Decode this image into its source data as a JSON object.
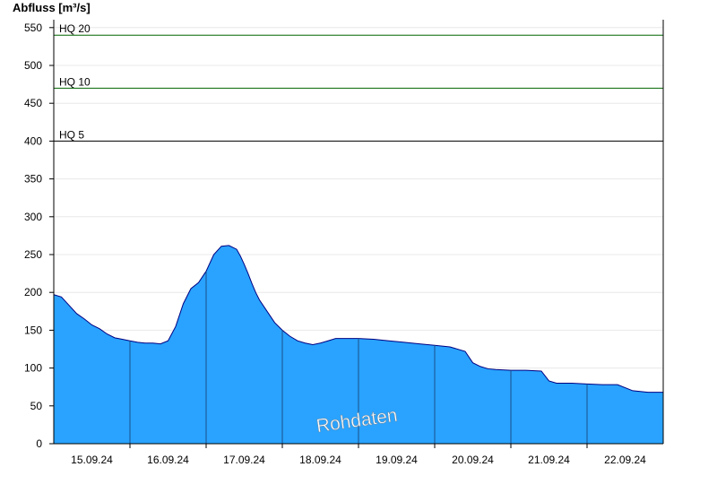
{
  "chart_data": {
    "type": "area",
    "ylabel": "Abfluss [m³/s]",
    "xlabel": "",
    "title": "",
    "ylim": [
      0,
      560
    ],
    "yticks": [
      0,
      50,
      100,
      150,
      200,
      250,
      300,
      350,
      400,
      450,
      500,
      550
    ],
    "x_range_days": [
      0,
      8
    ],
    "date_labels": [
      "15.09.24",
      "16.09.24",
      "17.09.24",
      "18.09.24",
      "19.09.24",
      "20.09.24",
      "21.09.24",
      "22.09.24"
    ],
    "grid": true,
    "fill_color": "#29a3ff",
    "line_color": "#000080",
    "watermark": "Rohdaten",
    "thresholds": [
      {
        "label": "HQ 20",
        "value": 540,
        "color": "#006400"
      },
      {
        "label": "HQ 10",
        "value": 470,
        "color": "#006400"
      },
      {
        "label": "HQ 5",
        "value": 400,
        "color": "#000000"
      }
    ],
    "series": [
      {
        "x": [
          0,
          0.1,
          0.2,
          0.3,
          0.4,
          0.5,
          0.6,
          0.7,
          0.8,
          0.9,
          1.0,
          1.1,
          1.2,
          1.3,
          1.4,
          1.5,
          1.6,
          1.7,
          1.8,
          1.9,
          2.0,
          2.1,
          2.2,
          2.3,
          2.4,
          2.45,
          2.5,
          2.55,
          2.6,
          2.65,
          2.7,
          2.8,
          2.9,
          3.0,
          3.1,
          3.2,
          3.3,
          3.4,
          3.5,
          3.6,
          3.7,
          3.8,
          3.9,
          4.0,
          4.2,
          4.4,
          4.6,
          4.8,
          5.0,
          5.2,
          5.4,
          5.5,
          5.6,
          5.7,
          5.8,
          6.0,
          6.2,
          6.4,
          6.5,
          6.6,
          6.8,
          7.0,
          7.2,
          7.4,
          7.6,
          7.8,
          8.0
        ],
        "values": [
          197,
          194,
          183,
          172,
          165,
          157,
          152,
          145,
          140,
          138,
          136,
          134,
          133,
          133,
          132,
          136,
          155,
          185,
          205,
          213,
          228,
          250,
          261,
          262,
          257,
          248,
          237,
          225,
          212,
          200,
          190,
          175,
          160,
          150,
          142,
          136,
          133,
          131,
          133,
          136,
          139,
          139,
          139,
          139,
          138,
          136,
          134,
          132,
          130,
          128,
          122,
          107,
          102,
          99,
          98,
          97,
          97,
          96,
          83,
          80,
          80,
          79,
          78,
          78,
          70,
          68,
          68
        ]
      }
    ]
  }
}
